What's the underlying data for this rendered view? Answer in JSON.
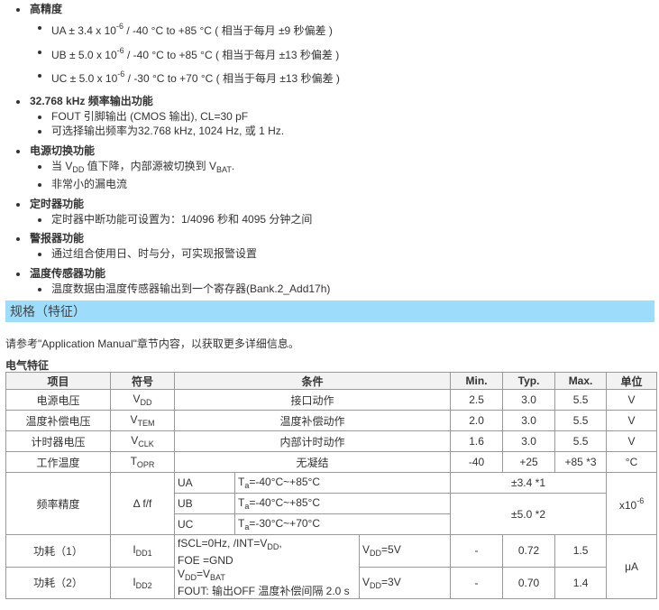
{
  "features": [
    {
      "title": "高精度",
      "items": [
        {
          "pre": "UA ± 3.4 x 10",
          "sup": "-6",
          "post": " / -40 °C to +85 °C ( 相当于每月 ±9 秒偏差 )"
        },
        {
          "pre": "UB ± 5.0 x 10",
          "sup": "-6",
          "post": " / -40 °C to +85 °C ( 相当于每月 ±13 秒偏差 )"
        },
        {
          "pre": "UC ± 5.0 x 10",
          "sup": "-6",
          "post": " / -30 °C to +70 °C ( 相当于每月 ±13 秒偏差 )"
        }
      ]
    },
    {
      "title": "32.768 kHz 频率输出功能",
      "items": [
        "FOUT 引脚输出 (CMOS 输出), CL=30 pF",
        "可选择输出频率为32.768 kHz, 1024 Hz, 或 1 Hz."
      ]
    },
    {
      "title": "电源切换功能",
      "items": [
        {
          "a": "当 V",
          "b": "DD",
          "c": " 值下降，内部源被切换到 V",
          "d": "BAT",
          "e": "."
        },
        "非常小的漏电流"
      ]
    },
    {
      "title": "定时器功能",
      "items": [
        "定时器中断功能可设置为：1/4096 秒和 4095 分钟之间"
      ]
    },
    {
      "title": "警报器功能",
      "items": [
        "通过组合使用日、时与分，可实现报警设置"
      ]
    },
    {
      "title": "温度传感器功能",
      "items": [
        "温度数据由温度传感器输出到一个寄存器(Bank.2_Add17h)"
      ]
    }
  ],
  "section_title": "规格（特征）",
  "note": "请参考\"Application Manual\"章节内容，以获取更多详细信息。",
  "table_title": "电气特征",
  "table": {
    "headers": [
      "项目",
      "符号",
      "条件",
      "Min.",
      "Typ.",
      "Max.",
      "单位"
    ],
    "rows": [
      {
        "item": "电源电压",
        "sym": "V",
        "sub": "DD",
        "cond": "接口动作",
        "min": "2.5",
        "typ": "3.0",
        "max": "5.5",
        "unit": "V"
      },
      {
        "item": "温度补偿电压",
        "sym": "V",
        "sub": "TEM",
        "cond": "温度补偿动作",
        "min": "2.0",
        "typ": "3.0",
        "max": "5.5",
        "unit": "V"
      },
      {
        "item": "计时器电压",
        "sym": "V",
        "sub": "CLK",
        "cond": "内部计时动作",
        "min": "1.6",
        "typ": "3.0",
        "max": "5.5",
        "unit": "V"
      },
      {
        "item": "工作温度",
        "sym": "T",
        "sub": "OPR",
        "cond": "无凝结",
        "min": "-40",
        "typ": "+25",
        "max": "+85 *3",
        "unit": "°C"
      }
    ],
    "freq": {
      "item": "频率精度",
      "sym": "Δ f/f",
      "unit_pre": "x10",
      "unit_sup": "-6",
      "sub": [
        {
          "grade": "UA",
          "cond": "=-40°C~+85°C"
        },
        {
          "grade": "UB",
          "cond": "=-40°C~+85°C"
        },
        {
          "grade": "UC",
          "cond": "=-30°C~+70°C"
        }
      ],
      "ta": "T",
      "ta_sub": "a",
      "val1": "±3.4 *1",
      "val2": "±5.0 *2"
    },
    "power": {
      "cond1a": "fSCL=0Hz, /INT=V",
      "cond1b": "DD",
      "cond1c": ",",
      "cond2": "FOE =GND",
      "cond3a": "V",
      "cond3b": "DD",
      "cond3c": "=V",
      "cond3d": "BAT",
      "cond4": "FOUT: 输出OFF 温度补偿间隔 2.0 s",
      "unit": "μA",
      "rows": [
        {
          "item": "功耗（1）",
          "sym": "I",
          "sub": "DD1",
          "v": "V",
          "vsub": "DD",
          "vpost": "=5V",
          "min": "-",
          "typ": "0.72",
          "max": "1.5"
        },
        {
          "item": "功耗（2）",
          "sym": "I",
          "sub": "DD2",
          "v": "V",
          "vsub": "DD",
          "vpost": "=3V",
          "min": "-",
          "typ": "0.70",
          "max": "1.4"
        }
      ]
    }
  }
}
